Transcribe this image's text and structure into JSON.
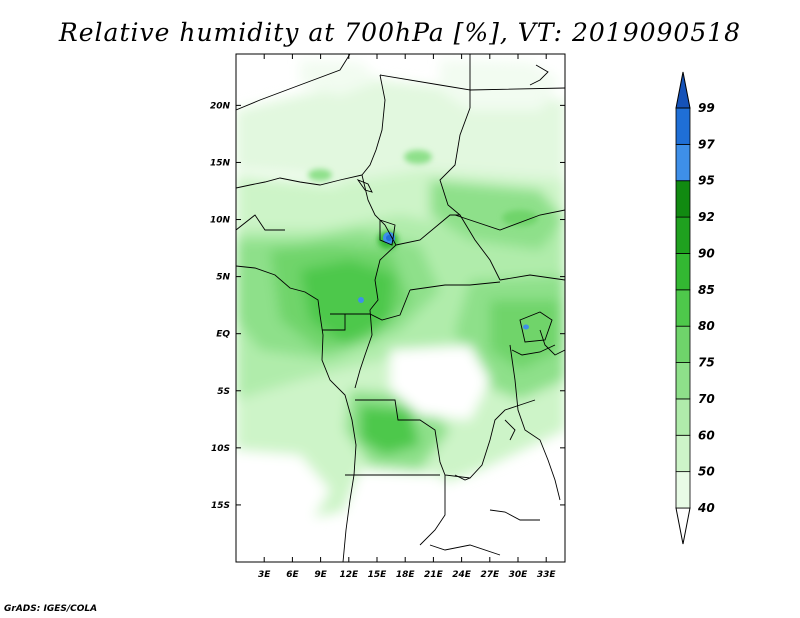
{
  "title": "Relative humidity at 700hPa [%], VT: 2019090518",
  "credit": "GrADS: IGES/COLA",
  "map": {
    "lon_range": [
      0,
      35
    ],
    "lat_range": [
      -20,
      24.5
    ],
    "x_ticks": [
      "3E",
      "6E",
      "9E",
      "12E",
      "15E",
      "18E",
      "21E",
      "24E",
      "27E",
      "30E",
      "33E"
    ],
    "x_tick_values": [
      3,
      6,
      9,
      12,
      15,
      18,
      21,
      24,
      27,
      30,
      33
    ],
    "y_ticks": [
      "20N",
      "15N",
      "10N",
      "5N",
      "EQ",
      "5S",
      "10S",
      "15S"
    ],
    "y_tick_values": [
      20,
      15,
      10,
      5,
      0,
      -5,
      -10,
      -15
    ]
  },
  "colorbar": {
    "levels": [
      "40",
      "50",
      "60",
      "70",
      "75",
      "80",
      "85",
      "90",
      "92",
      "95",
      "97",
      "99"
    ],
    "colors": [
      "#ffffff",
      "#e8fbe6",
      "#cdf4c8",
      "#b0ecab",
      "#8ee08a",
      "#6fd46b",
      "#4ec84b",
      "#33b832",
      "#1fa11f",
      "#118a11",
      "#3e8fe8",
      "#1f6fd6",
      "#1552b8"
    ]
  }
}
